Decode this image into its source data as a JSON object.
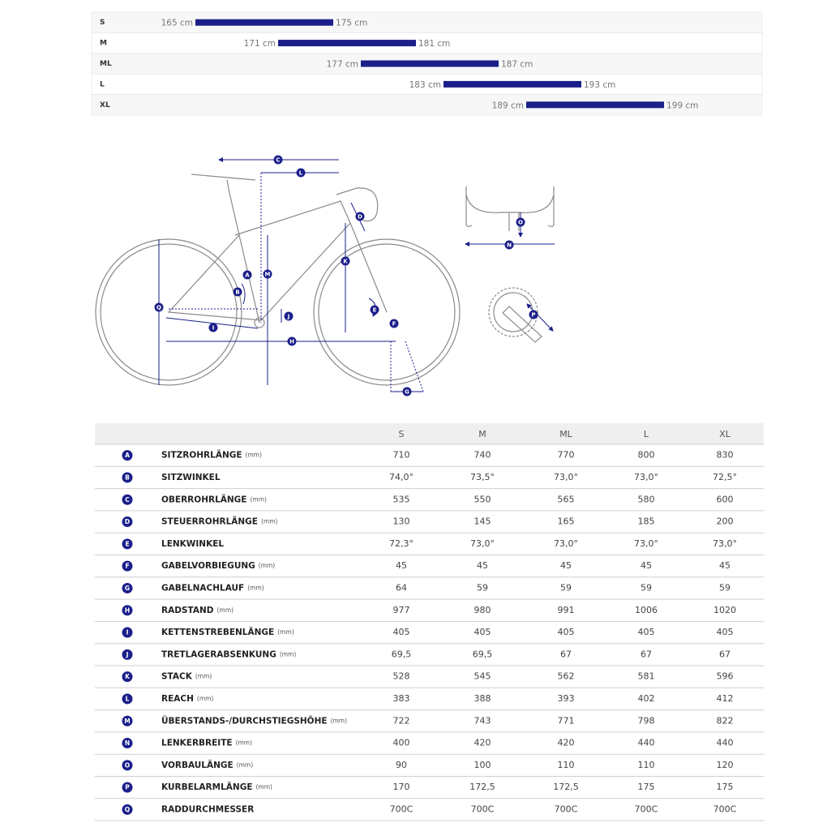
{
  "size_chart": {
    "rows": [
      {
        "size": "S",
        "min": 165,
        "max": 175,
        "min_label": "165 cm",
        "max_label": "175 cm"
      },
      {
        "size": "M",
        "min": 171,
        "max": 181,
        "min_label": "171 cm",
        "max_label": "181 cm"
      },
      {
        "size": "ML",
        "min": 177,
        "max": 187,
        "min_label": "177 cm",
        "max_label": "187 cm"
      },
      {
        "size": "L",
        "min": 183,
        "max": 193,
        "min_label": "183 cm",
        "max_label": "193 cm"
      },
      {
        "size": "XL",
        "min": 189,
        "max": 199,
        "min_label": "189 cm",
        "max_label": "199 cm"
      }
    ]
  },
  "table": {
    "columns": [
      "S",
      "M",
      "ML",
      "L",
      "XL"
    ],
    "rows": [
      {
        "letter": "A",
        "name": "SITZROHRLÄNGE",
        "unit": "(mm)",
        "values": [
          710,
          740,
          770,
          800,
          830
        ]
      },
      {
        "letter": "B",
        "name": "SITZWINKEL",
        "values": [
          "74,0°",
          "73,5°",
          "73,0°",
          "73,0°",
          "72,5°"
        ]
      },
      {
        "letter": "C",
        "name": "OBERROHRLÄNGE",
        "unit": "(mm)",
        "values": [
          535,
          550,
          565,
          580,
          600
        ]
      },
      {
        "letter": "D",
        "name": "STEUERROHRLÄNGE",
        "unit": "(mm)",
        "values": [
          130,
          145,
          165,
          185,
          200
        ]
      },
      {
        "letter": "E",
        "name": "LENKWINKEL",
        "values": [
          "72,3°",
          "73,0°",
          "73,0°",
          "73,0°",
          "73,0°"
        ]
      },
      {
        "letter": "F",
        "name": "GABELVORBIEGUNG",
        "unit": "(mm)",
        "values": [
          45,
          45,
          45,
          45,
          45
        ]
      },
      {
        "letter": "G",
        "name": "GABELNACHLAUF",
        "unit": "(mm)",
        "values": [
          64,
          59,
          59,
          59,
          59
        ]
      },
      {
        "letter": "H",
        "name": "RADSTAND",
        "unit": "(mm)",
        "values": [
          977,
          980,
          991,
          1006,
          1020
        ]
      },
      {
        "letter": "I",
        "name": "KETTENSTREBENLÄNGE",
        "unit": "(mm)",
        "values": [
          405,
          405,
          405,
          405,
          405
        ]
      },
      {
        "letter": "J",
        "name": "TRETLAGERABSENKUNG",
        "unit": "(mm)",
        "values": [
          "69,5",
          "69,5",
          67,
          67,
          67
        ]
      },
      {
        "letter": "K",
        "name": "STACK",
        "unit": "(mm)",
        "values": [
          528,
          545,
          562,
          581,
          596
        ]
      },
      {
        "letter": "L",
        "name": "REACH",
        "unit": "(mm)",
        "values": [
          383,
          388,
          393,
          402,
          412
        ]
      },
      {
        "letter": "M",
        "name": "ÜBERSTANDS-/DURCHSTIEGSHÖHE",
        "unit": "(mm)",
        "values": [
          722,
          743,
          771,
          798,
          822
        ]
      },
      {
        "letter": "N",
        "name": "LENKERBREITE",
        "unit": "(mm)",
        "values": [
          400,
          420,
          420,
          440,
          440
        ]
      },
      {
        "letter": "O",
        "name": "VORBAULÄNGE",
        "unit": "(mm)",
        "values": [
          90,
          100,
          110,
          110,
          120
        ]
      },
      {
        "letter": "P",
        "name": "KURBELARMLÄNGE",
        "unit": "(mm)",
        "values": [
          170,
          "172,5",
          "172,5",
          175,
          175
        ]
      },
      {
        "letter": "Q",
        "name": "RADDURCHMESSER",
        "values": [
          "700C",
          "700C",
          "700C",
          "700C",
          "700C"
        ]
      }
    ]
  }
}
